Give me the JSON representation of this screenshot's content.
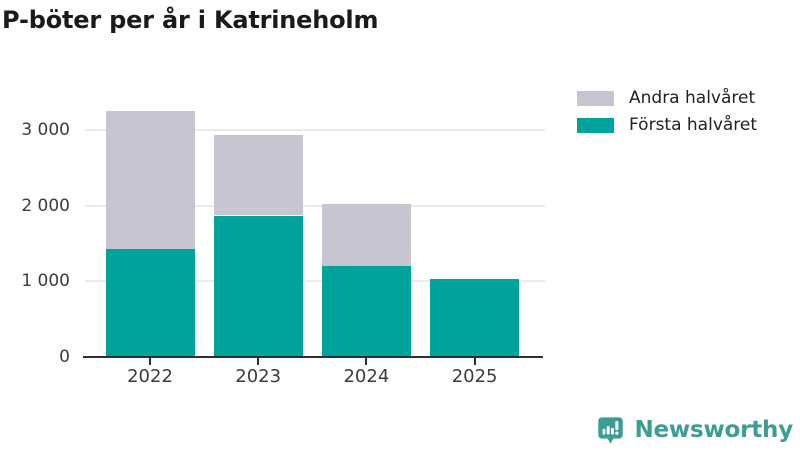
{
  "title": "P-böter per år i Katrineholm",
  "legend": {
    "items": [
      {
        "label": "Andra halvåret",
        "color": "#c7c6d0"
      },
      {
        "label": "Första halvåret",
        "color": "#00a399"
      }
    ]
  },
  "chart_data": {
    "type": "bar",
    "stacked": true,
    "title": "P-böter per år i Katrineholm",
    "categories": [
      "2022",
      "2023",
      "2024",
      "2025"
    ],
    "series": [
      {
        "name": "Första halvåret",
        "color": "#00a399",
        "values": [
          1430,
          1870,
          1200,
          1030
        ]
      },
      {
        "name": "Andra halvåret",
        "color": "#c7c6d0",
        "values": [
          1820,
          1070,
          820,
          0
        ]
      }
    ],
    "xlabel": "",
    "ylabel": "",
    "ylim": [
      0,
      3400
    ],
    "yticks": [
      0,
      1000,
      2000,
      3000
    ],
    "ytick_labels": [
      "0",
      "1 000",
      "2 000",
      "3 000"
    ],
    "grid": true,
    "legend_position": "top-right"
  },
  "branding": {
    "logo_text": "Newsworthy",
    "logo_color": "#3d9d93",
    "logo_icon": "bar-chart-speech-bubble-icon"
  }
}
